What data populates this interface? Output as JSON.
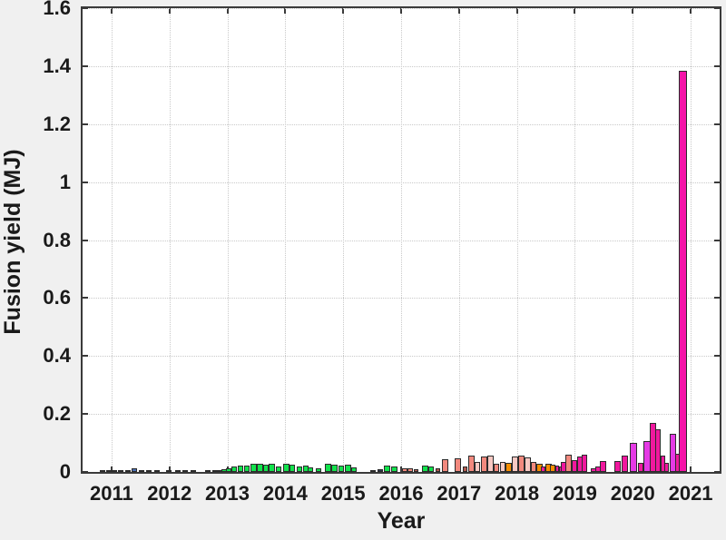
{
  "chart_data": {
    "type": "bar",
    "title": "",
    "xlabel": "Year",
    "ylabel": "Fusion yield (MJ)",
    "x_ticks": [
      2011,
      2012,
      2013,
      2014,
      2015,
      2016,
      2017,
      2018,
      2019,
      2020,
      2021
    ],
    "y_ticks": [
      "0",
      "0.2",
      "0.4",
      "0.6",
      "0.8",
      "1",
      "1.2",
      "1.4",
      "1.6"
    ],
    "xlim": [
      2010.5,
      2021.5
    ],
    "ylim": [
      0,
      1.6
    ],
    "grid": "dotted-both",
    "legend": "none",
    "palette": {
      "navy": "#2a3550",
      "blue": "#4a6fb5",
      "green": "#12e24c",
      "salmon": "#f2897e",
      "lightpink": "#f8c9c3",
      "darkred": "#b05a50",
      "orange": "#f68d00",
      "magenta": "#f0189e",
      "violet": "#e53ae5",
      "bright": "#f513a8"
    },
    "bars": [
      {
        "x": 2010.85,
        "y": 0.004,
        "c": "navy",
        "w": 6
      },
      {
        "x": 2010.95,
        "y": 0.005,
        "c": "navy",
        "w": 6
      },
      {
        "x": 2011.05,
        "y": 0.004,
        "c": "navy",
        "w": 6
      },
      {
        "x": 2011.16,
        "y": 0.005,
        "c": "navy",
        "w": 6
      },
      {
        "x": 2011.29,
        "y": 0.004,
        "c": "navy",
        "w": 6
      },
      {
        "x": 2011.4,
        "y": 0.012,
        "c": "blue",
        "w": 6
      },
      {
        "x": 2011.52,
        "y": 0.005,
        "c": "navy",
        "w": 6
      },
      {
        "x": 2011.65,
        "y": 0.004,
        "c": "navy",
        "w": 6
      },
      {
        "x": 2011.78,
        "y": 0.005,
        "c": "navy",
        "w": 6
      },
      {
        "x": 2011.99,
        "y": 0.006,
        "c": "navy",
        "w": 6
      },
      {
        "x": 2012.14,
        "y": 0.005,
        "c": "navy",
        "w": 6
      },
      {
        "x": 2012.27,
        "y": 0.004,
        "c": "navy",
        "w": 6
      },
      {
        "x": 2012.41,
        "y": 0.005,
        "c": "navy",
        "w": 6
      },
      {
        "x": 2012.66,
        "y": 0.004,
        "c": "navy",
        "w": 6
      },
      {
        "x": 2012.78,
        "y": 0.005,
        "c": "navy",
        "w": 6
      },
      {
        "x": 2012.87,
        "y": 0.006,
        "c": "navy",
        "w": 6
      },
      {
        "x": 2012.95,
        "y": 0.009,
        "c": "green",
        "w": 6
      },
      {
        "x": 2013.03,
        "y": 0.014,
        "c": "green",
        "w": 6
      },
      {
        "x": 2013.12,
        "y": 0.02,
        "c": "green",
        "w": 6
      },
      {
        "x": 2013.23,
        "y": 0.022,
        "c": "green",
        "w": 6
      },
      {
        "x": 2013.34,
        "y": 0.021,
        "c": "green",
        "w": 6
      },
      {
        "x": 2013.46,
        "y": 0.027,
        "c": "green",
        "w": 7
      },
      {
        "x": 2013.57,
        "y": 0.028,
        "c": "green",
        "w": 7
      },
      {
        "x": 2013.67,
        "y": 0.024,
        "c": "green",
        "w": 6
      },
      {
        "x": 2013.77,
        "y": 0.028,
        "c": "green",
        "w": 7
      },
      {
        "x": 2013.88,
        "y": 0.019,
        "c": "green",
        "w": 6
      },
      {
        "x": 2014.01,
        "y": 0.027,
        "c": "green",
        "w": 7
      },
      {
        "x": 2014.12,
        "y": 0.025,
        "c": "green",
        "w": 6
      },
      {
        "x": 2014.24,
        "y": 0.019,
        "c": "green",
        "w": 6
      },
      {
        "x": 2014.35,
        "y": 0.022,
        "c": "green",
        "w": 6
      },
      {
        "x": 2014.44,
        "y": 0.017,
        "c": "green",
        "w": 6
      },
      {
        "x": 2014.58,
        "y": 0.014,
        "c": "green",
        "w": 6
      },
      {
        "x": 2014.74,
        "y": 0.028,
        "c": "green",
        "w": 7
      },
      {
        "x": 2014.85,
        "y": 0.026,
        "c": "green",
        "w": 7
      },
      {
        "x": 2014.96,
        "y": 0.021,
        "c": "green",
        "w": 6
      },
      {
        "x": 2015.08,
        "y": 0.024,
        "c": "green",
        "w": 7
      },
      {
        "x": 2015.19,
        "y": 0.017,
        "c": "green",
        "w": 6
      },
      {
        "x": 2015.51,
        "y": 0.005,
        "c": "navy",
        "w": 6
      },
      {
        "x": 2015.64,
        "y": 0.01,
        "c": "navy",
        "w": 6
      },
      {
        "x": 2015.76,
        "y": 0.022,
        "c": "green",
        "w": 7
      },
      {
        "x": 2015.89,
        "y": 0.019,
        "c": "green",
        "w": 7
      },
      {
        "x": 2016.06,
        "y": 0.012,
        "c": "salmon",
        "w": 6
      },
      {
        "x": 2016.15,
        "y": 0.013,
        "c": "salmon",
        "w": 6
      },
      {
        "x": 2016.26,
        "y": 0.01,
        "c": "darkred",
        "w": 5
      },
      {
        "x": 2016.42,
        "y": 0.022,
        "c": "green",
        "w": 7
      },
      {
        "x": 2016.52,
        "y": 0.02,
        "c": "green",
        "w": 6
      },
      {
        "x": 2016.63,
        "y": 0.012,
        "c": "darkred",
        "w": 5
      },
      {
        "x": 2016.76,
        "y": 0.045,
        "c": "salmon",
        "w": 7
      },
      {
        "x": 2016.98,
        "y": 0.047,
        "c": "salmon",
        "w": 7
      },
      {
        "x": 2017.1,
        "y": 0.02,
        "c": "darkred",
        "w": 5
      },
      {
        "x": 2017.21,
        "y": 0.055,
        "c": "salmon",
        "w": 7
      },
      {
        "x": 2017.32,
        "y": 0.035,
        "c": "lightpink",
        "w": 6
      },
      {
        "x": 2017.43,
        "y": 0.052,
        "c": "salmon",
        "w": 7
      },
      {
        "x": 2017.54,
        "y": 0.055,
        "c": "lightpink",
        "w": 7
      },
      {
        "x": 2017.65,
        "y": 0.028,
        "c": "salmon",
        "w": 6
      },
      {
        "x": 2017.76,
        "y": 0.035,
        "c": "lightpink",
        "w": 6
      },
      {
        "x": 2017.86,
        "y": 0.03,
        "c": "orange",
        "w": 7
      },
      {
        "x": 2017.97,
        "y": 0.052,
        "c": "lightpink",
        "w": 7
      },
      {
        "x": 2018.08,
        "y": 0.056,
        "c": "salmon",
        "w": 7
      },
      {
        "x": 2018.19,
        "y": 0.05,
        "c": "lightpink",
        "w": 7
      },
      {
        "x": 2018.28,
        "y": 0.035,
        "c": "salmon",
        "w": 6
      },
      {
        "x": 2018.39,
        "y": 0.028,
        "c": "orange",
        "w": 7
      },
      {
        "x": 2018.46,
        "y": 0.02,
        "c": "magenta",
        "w": 5
      },
      {
        "x": 2018.55,
        "y": 0.027,
        "c": "orange",
        "w": 7
      },
      {
        "x": 2018.62,
        "y": 0.024,
        "c": "orange",
        "w": 6
      },
      {
        "x": 2018.69,
        "y": 0.022,
        "c": "magenta",
        "w": 4
      },
      {
        "x": 2018.75,
        "y": 0.02,
        "c": "magenta",
        "w": 4
      },
      {
        "x": 2018.8,
        "y": 0.035,
        "c": "magenta",
        "w": 6
      },
      {
        "x": 2018.89,
        "y": 0.058,
        "c": "salmon",
        "w": 7
      },
      {
        "x": 2019.0,
        "y": 0.042,
        "c": "magenta",
        "w": 6
      },
      {
        "x": 2019.09,
        "y": 0.053,
        "c": "magenta",
        "w": 6
      },
      {
        "x": 2019.17,
        "y": 0.058,
        "c": "magenta",
        "w": 6
      },
      {
        "x": 2019.32,
        "y": 0.014,
        "c": "magenta",
        "w": 6
      },
      {
        "x": 2019.4,
        "y": 0.02,
        "c": "magenta",
        "w": 6
      },
      {
        "x": 2019.49,
        "y": 0.038,
        "c": "magenta",
        "w": 7
      },
      {
        "x": 2019.73,
        "y": 0.038,
        "c": "magenta",
        "w": 7
      },
      {
        "x": 2019.87,
        "y": 0.056,
        "c": "magenta",
        "w": 7
      },
      {
        "x": 2020.01,
        "y": 0.1,
        "c": "violet",
        "w": 8
      },
      {
        "x": 2020.13,
        "y": 0.03,
        "c": "magenta",
        "w": 6
      },
      {
        "x": 2020.24,
        "y": 0.105,
        "c": "violet",
        "w": 8
      },
      {
        "x": 2020.35,
        "y": 0.17,
        "c": "magenta",
        "w": 7
      },
      {
        "x": 2020.44,
        "y": 0.148,
        "c": "magenta",
        "w": 6
      },
      {
        "x": 2020.52,
        "y": 0.055,
        "c": "magenta",
        "w": 5
      },
      {
        "x": 2020.58,
        "y": 0.032,
        "c": "magenta",
        "w": 5
      },
      {
        "x": 2020.69,
        "y": 0.13,
        "c": "violet",
        "w": 7
      },
      {
        "x": 2020.77,
        "y": 0.063,
        "c": "magenta",
        "w": 5
      },
      {
        "x": 2020.86,
        "y": 1.385,
        "c": "bright",
        "w": 9
      }
    ]
  }
}
